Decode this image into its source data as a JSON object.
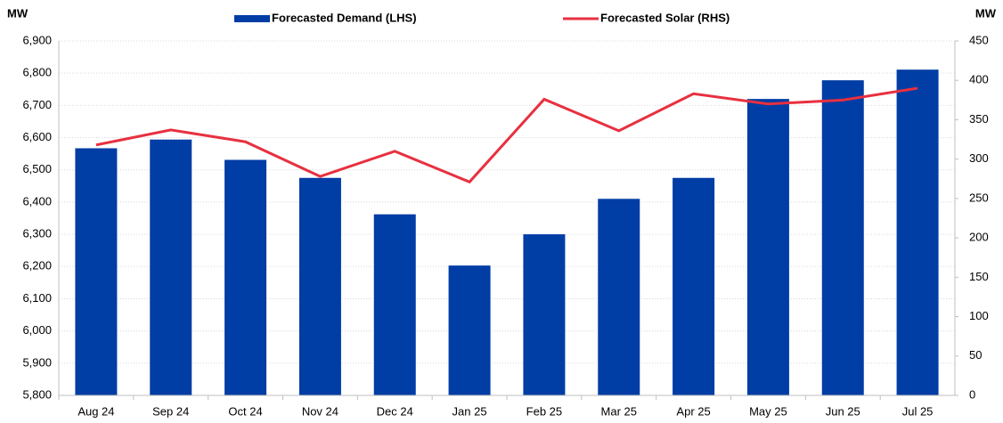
{
  "chart_data": {
    "type": "bar_line",
    "y_label": "MW",
    "y2_label": "MW",
    "categories": [
      "Aug 24",
      "Sep 24",
      "Oct 24",
      "Nov 24",
      "Dec 24",
      "Jan 25",
      "Feb 25",
      "Mar 25",
      "Apr 25",
      "May 25",
      "Jun 25",
      "Jul 25"
    ],
    "series": [
      {
        "name": "Forecasted Demand (LHS)",
        "type": "bar",
        "color": "#003da5",
        "axis": "y",
        "values": [
          6567,
          6594,
          6531,
          6475,
          6362,
          6203,
          6300,
          6410,
          6475,
          6720,
          6778,
          6811
        ]
      },
      {
        "name": "Forecasted Solar (RHS)",
        "type": "line",
        "color": "#e8303f",
        "axis": "y2",
        "values": [
          318,
          337,
          322,
          278,
          310,
          271,
          376,
          336,
          383,
          370,
          375,
          390
        ]
      }
    ],
    "ylim": [
      5800,
      6900
    ],
    "yticks": [
      {
        "value": 5800,
        "label": "5,800"
      },
      {
        "value": 5900,
        "label": "5,900"
      },
      {
        "value": 6000,
        "label": "6,000"
      },
      {
        "value": 6100,
        "label": "6,100"
      },
      {
        "value": 6200,
        "label": "6,200"
      },
      {
        "value": 6300,
        "label": "6,300"
      },
      {
        "value": 6400,
        "label": "6,400"
      },
      {
        "value": 6500,
        "label": "6,500"
      },
      {
        "value": 6600,
        "label": "6,600"
      },
      {
        "value": 6700,
        "label": "6,700"
      },
      {
        "value": 6800,
        "label": "6,800"
      },
      {
        "value": 6900,
        "label": "6,900"
      }
    ],
    "y2lim": [
      0,
      450
    ],
    "y2ticks": [
      0,
      50,
      100,
      150,
      200,
      250,
      300,
      350,
      400,
      450
    ],
    "grid": true
  }
}
